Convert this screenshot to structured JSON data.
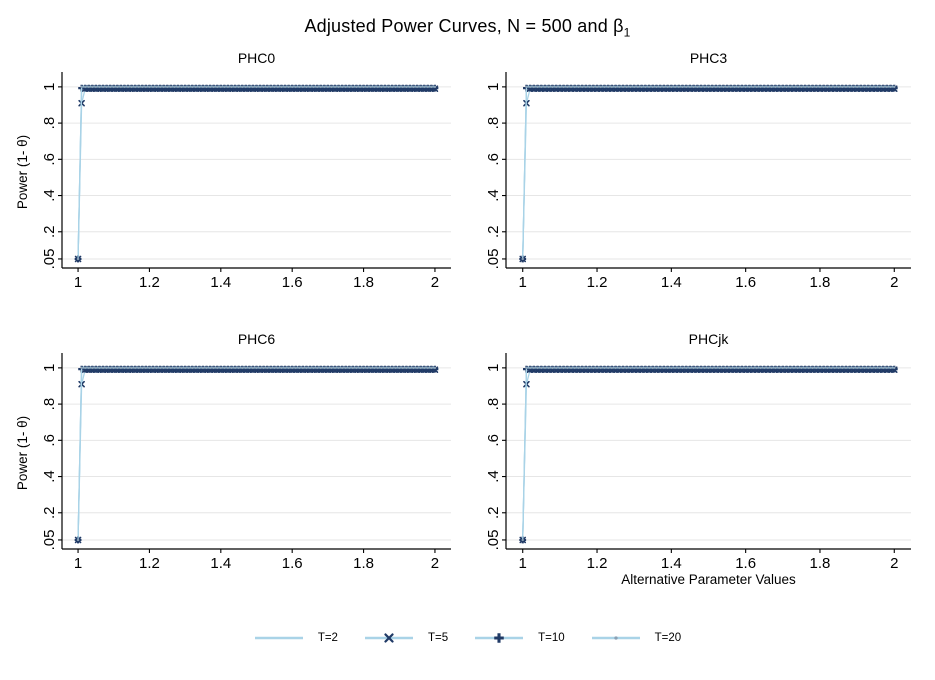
{
  "header": {
    "title_main": "Adjusted Power Curves, N = 500 and β",
    "title_sub": "1"
  },
  "colors": {
    "line_blue": "#a9d3e7",
    "marker_navy": "#203a66",
    "marker_dot_gray": "#8aa0b4",
    "grid": "#e6e6e6",
    "axis": "#000000"
  },
  "chart_data": {
    "type": "line",
    "layout": "2x2 small multiples",
    "title": "Adjusted Power Curves, N = 500 and β₁",
    "xlabel": "Alternative Parameter Values",
    "ylabel": "Power (1- θ)",
    "xlim": [
      0.955,
      2.045
    ],
    "ylim": [
      0,
      1.06
    ],
    "grid": "horizontal gridlines at y ticks",
    "legend_position": "bottom center",
    "x_ticks": [
      1,
      1.2,
      1.4,
      1.6,
      1.8,
      2
    ],
    "x_tick_labels": [
      "1",
      "1.2",
      "1.4",
      "1.6",
      "1.8",
      "2"
    ],
    "y_ticks": [
      0.05,
      0.2,
      0.4,
      0.6,
      0.8,
      1
    ],
    "y_tick_labels": [
      ".05",
      ".2",
      ".4",
      ".6",
      ".8",
      "1"
    ],
    "x_step": 0.01,
    "x_end": 2,
    "panels": [
      {
        "title": "PHC0",
        "show_ylabel": true,
        "show_xlabel": false
      },
      {
        "title": "PHC3",
        "show_ylabel": false,
        "show_xlabel": false
      },
      {
        "title": "PHC6",
        "show_ylabel": true,
        "show_xlabel": false
      },
      {
        "title": "PHCjk",
        "show_ylabel": false,
        "show_xlabel": true
      }
    ],
    "series": [
      {
        "name": "T=2",
        "marker": "none",
        "line_color": "#a9d3e7",
        "marker_color": null,
        "anchors": [
          [
            1,
            0.05
          ],
          [
            1.01,
            1.005
          ]
        ],
        "plateau_from": 1.01,
        "plateau_y": 1.005
      },
      {
        "name": "T=5",
        "marker": "x",
        "line_color": "#a9d3e7",
        "marker_color": "#203a66",
        "anchors": [
          [
            1,
            0.05
          ],
          [
            1.01,
            0.91
          ],
          [
            1.02,
            0.99
          ]
        ],
        "plateau_from": 1.02,
        "plateau_y": 0.99
      },
      {
        "name": "T=10",
        "marker": "plus",
        "line_color": "#a9d3e7",
        "marker_color": "#203a66",
        "anchors": [
          [
            1,
            0.05
          ],
          [
            1.01,
            0.993
          ]
        ],
        "plateau_from": 1.01,
        "plateau_y": 0.993
      },
      {
        "name": "T=20",
        "marker": "dot",
        "line_color": "#a9d3e7",
        "marker_color": "#8aa0b4",
        "anchors": [
          [
            1,
            0.05
          ],
          [
            1.01,
            1.0
          ]
        ],
        "plateau_from": 1.01,
        "plateau_y": 1.0
      }
    ]
  },
  "legend": {
    "items": [
      {
        "label": "T=2",
        "marker": "none"
      },
      {
        "label": "T=5",
        "marker": "x"
      },
      {
        "label": "T=10",
        "marker": "plus"
      },
      {
        "label": "T=20",
        "marker": "dot"
      }
    ]
  }
}
